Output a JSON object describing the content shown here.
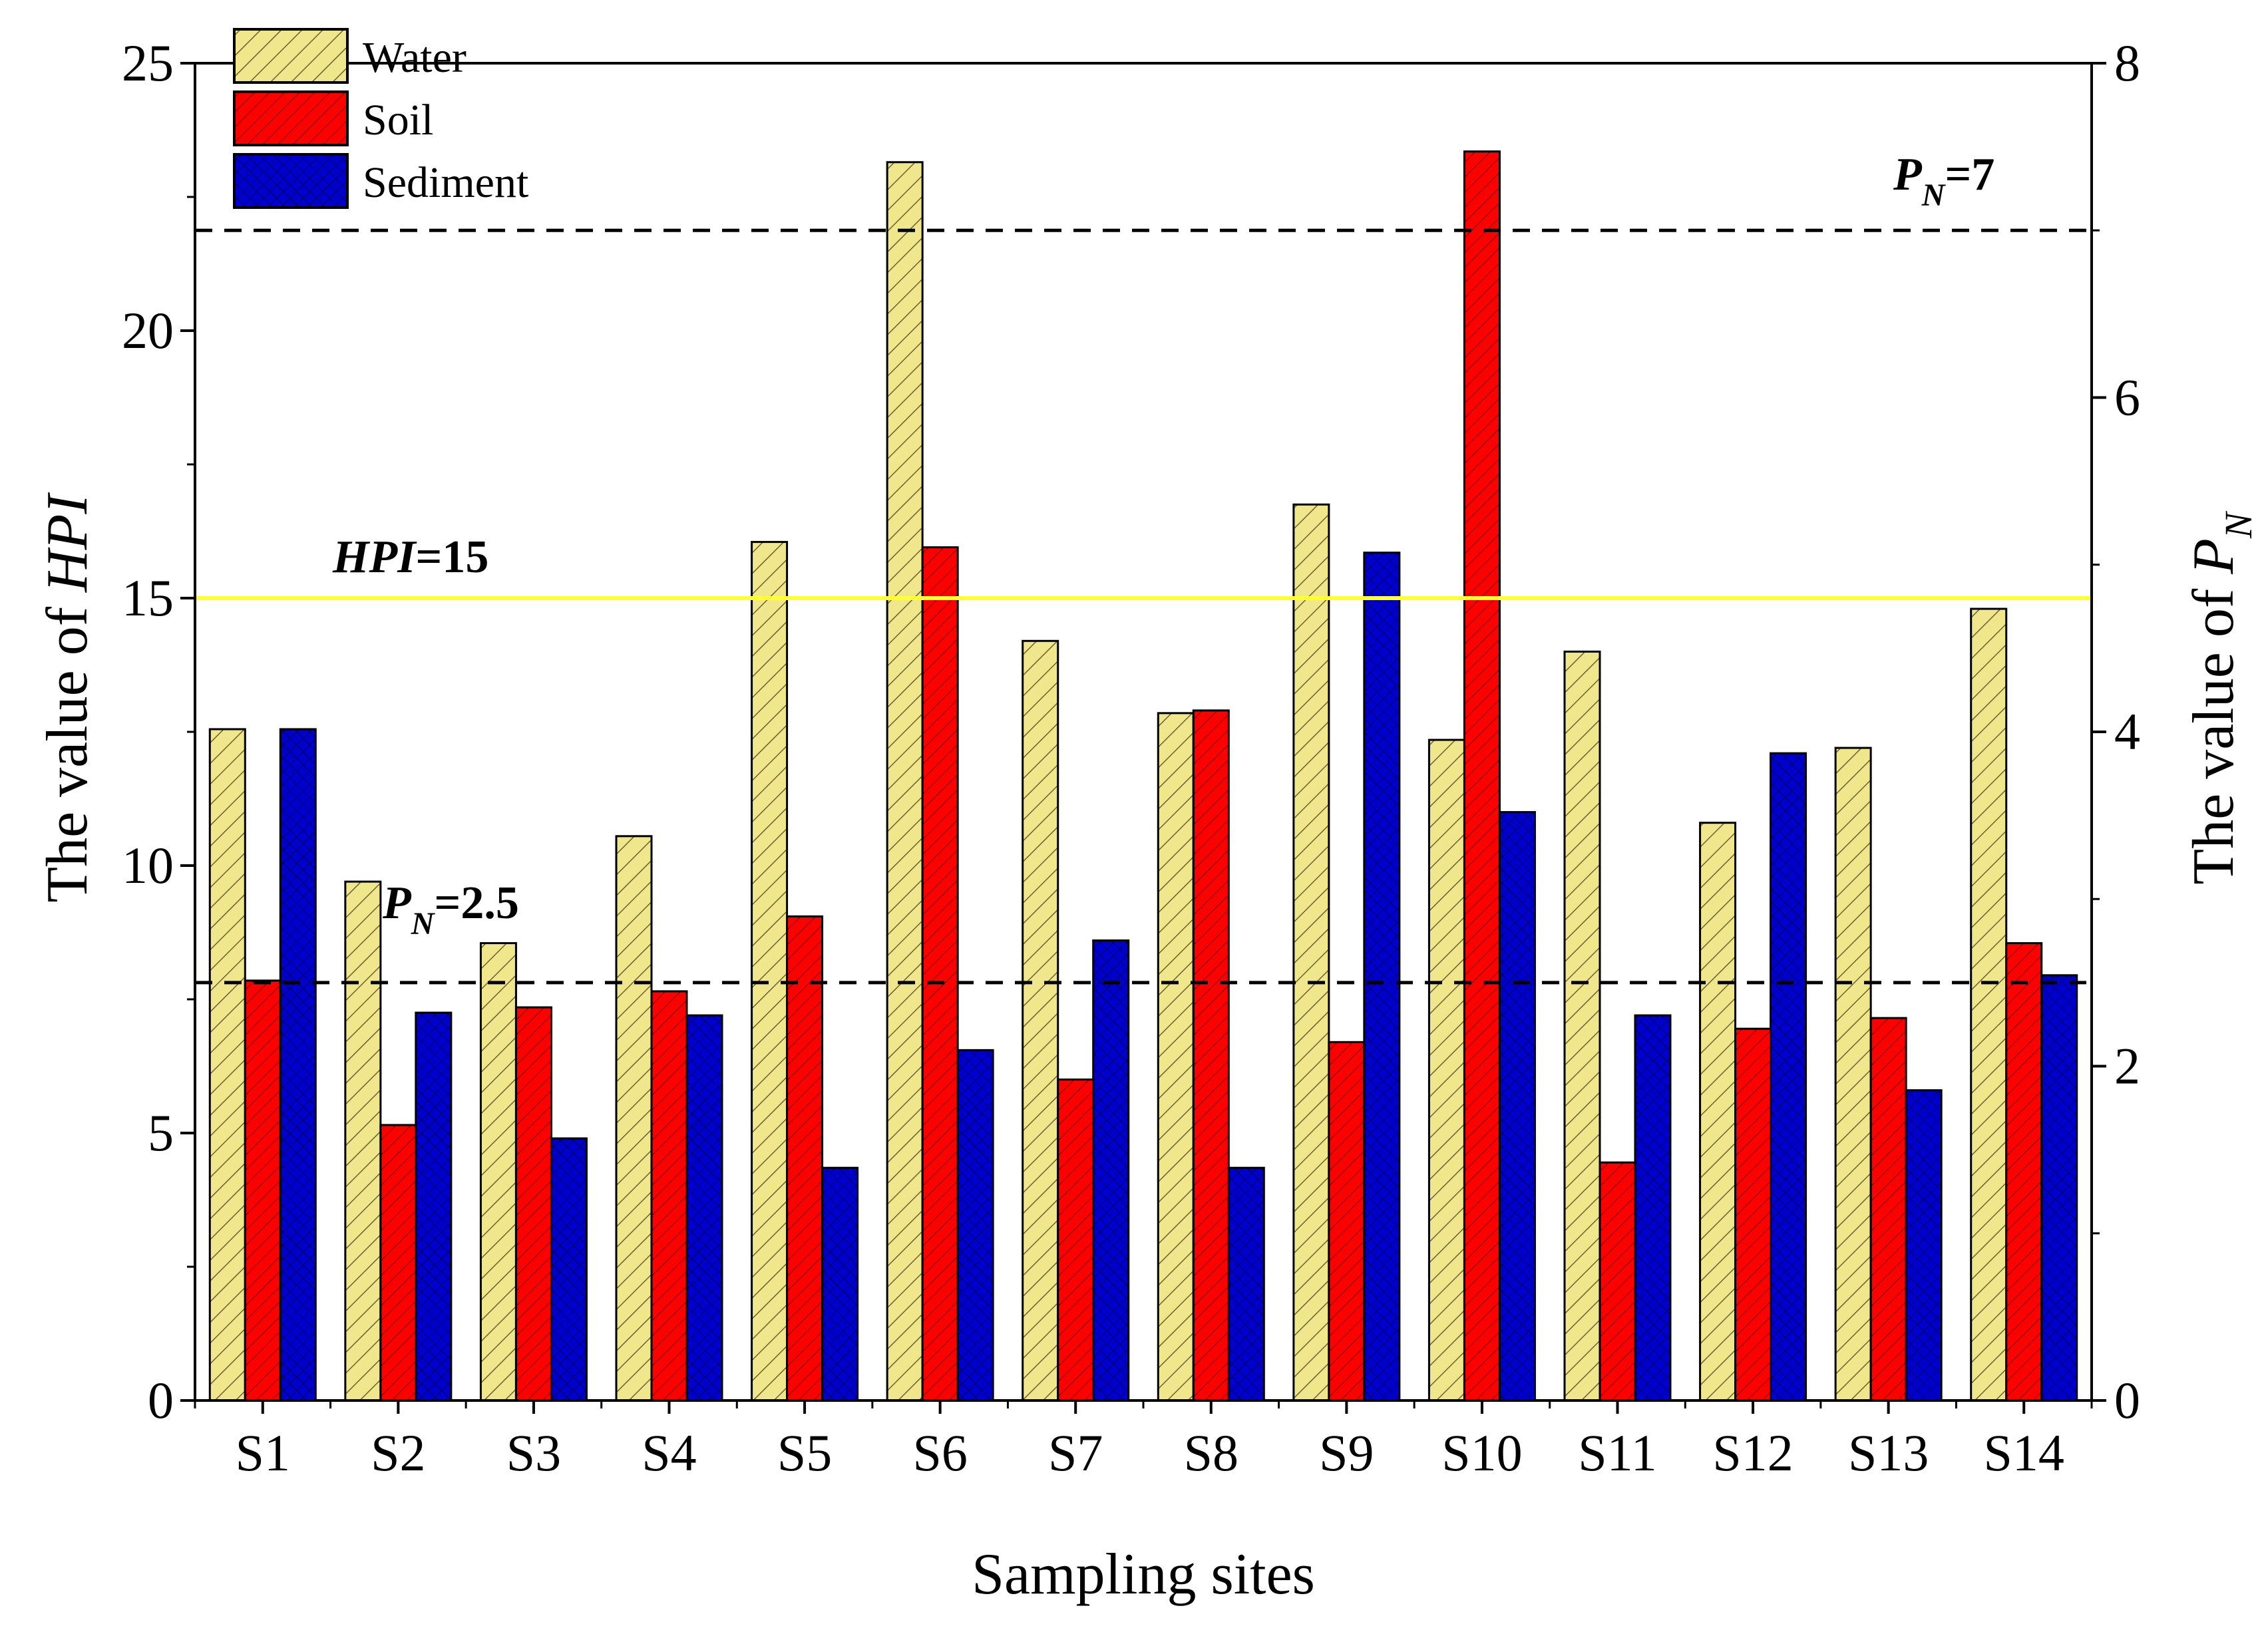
{
  "chart_data": {
    "type": "bar",
    "categories": [
      "S1",
      "S2",
      "S3",
      "S4",
      "S5",
      "S6",
      "S7",
      "S8",
      "S9",
      "S10",
      "S11",
      "S12",
      "S13",
      "S14"
    ],
    "series": [
      {
        "name": "Water",
        "color": "#f0e68c",
        "pattern": "hatch-diagonal",
        "values": [
          12.55,
          9.7,
          8.55,
          10.55,
          16.05,
          23.15,
          14.2,
          12.85,
          16.75,
          12.35,
          14.0,
          10.8,
          12.2,
          14.8
        ]
      },
      {
        "name": "Soil",
        "color": "#ff0000",
        "pattern": "hatch-diagonal",
        "values": [
          7.85,
          5.15,
          7.35,
          7.65,
          9.05,
          15.95,
          6.0,
          12.9,
          6.7,
          23.35,
          4.45,
          6.95,
          7.15,
          8.55
        ]
      },
      {
        "name": "Sediment",
        "color": "#0000cc",
        "pattern": "crosshatch",
        "values": [
          12.55,
          7.25,
          4.9,
          7.2,
          4.35,
          6.55,
          8.6,
          4.35,
          15.85,
          11.0,
          7.2,
          12.1,
          5.8,
          7.95
        ]
      }
    ],
    "xlabel": "Sampling sites",
    "ylabel_left": {
      "prefix": "The value of ",
      "symbol": "HPI"
    },
    "ylabel_right": {
      "prefix": "The value of ",
      "symbol": "P",
      "subscript": "N"
    },
    "ylim_left": [
      0,
      25
    ],
    "yticks_left": [
      0,
      5,
      10,
      15,
      20,
      25
    ],
    "ylim_right": [
      0,
      8
    ],
    "yticks_right": [
      0,
      2,
      4,
      6,
      8
    ],
    "reference_lines": [
      {
        "axis": "left",
        "value": 15,
        "style": "solid",
        "color": "#ffff33",
        "label": {
          "symbol": "HPI",
          "text": "=15"
        }
      },
      {
        "axis": "right",
        "value": 2.5,
        "style": "dashed",
        "color": "#000000",
        "label": {
          "symbol": "P",
          "subscript": "N",
          "text": "=2.5"
        }
      },
      {
        "axis": "right",
        "value": 7,
        "style": "dashed",
        "color": "#000000",
        "label": {
          "symbol": "P",
          "subscript": "N",
          "text": "=7"
        }
      }
    ],
    "legend": {
      "position": "top-left",
      "entries": [
        "Water",
        "Soil",
        "Sediment"
      ]
    }
  }
}
